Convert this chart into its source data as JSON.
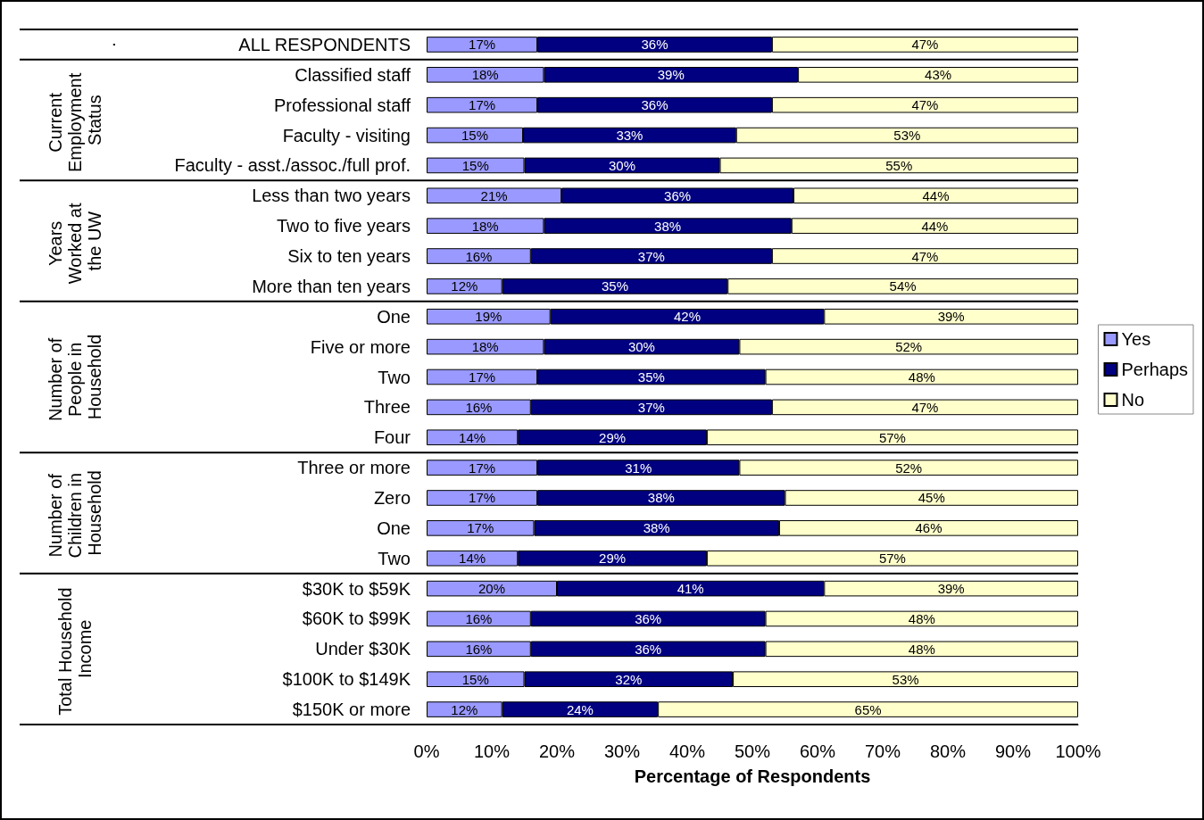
{
  "chart_data": {
    "type": "bar",
    "orientation": "horizontal",
    "stacked": true,
    "xlabel": "Percentage of Respondents",
    "categories": [
      "ALL RESPONDENTS",
      "Classified staff",
      "Professional staff",
      "Faculty - visiting",
      "Faculty - asst./assoc./full prof.",
      "Less than two years",
      "Two to five years",
      "Six to ten years",
      "More than ten years",
      "One",
      "Five or more",
      "Two",
      "Three",
      "Four",
      "Three or more",
      "Zero",
      "One",
      "Two",
      "$30K to $59K",
      "$60K to $99K",
      "Under $30K",
      "$100K to $149K",
      "$150K or more"
    ],
    "series": [
      {
        "name": "Yes",
        "color": "#9999ff",
        "values": [
          17,
          18,
          17,
          14.8,
          15,
          20.7,
          18,
          16,
          11.6,
          19,
          18,
          17,
          16,
          14,
          17,
          17,
          16.5,
          14,
          20,
          16,
          16,
          15,
          11.6
        ],
        "value_labels": [
          "17%",
          "18%",
          "17%",
          "15%",
          "15%",
          "21%",
          "18%",
          "16%",
          "12%",
          "19%",
          "18%",
          "17%",
          "16%",
          "14%",
          "17%",
          "17%",
          "17%",
          "14%",
          "20%",
          "16%",
          "16%",
          "15%",
          "12%"
        ]
      },
      {
        "name": "Perhaps",
        "color": "#000080",
        "values": [
          36,
          39,
          36,
          32.7,
          30,
          35.6,
          38,
          37,
          34.6,
          42,
          30,
          35,
          37,
          29,
          31,
          38,
          37.6,
          29,
          41,
          36,
          36,
          32,
          23.9
        ],
        "value_labels": [
          "36%",
          "39%",
          "36%",
          "33%",
          "30%",
          "36%",
          "38%",
          "37%",
          "35%",
          "42%",
          "30%",
          "35%",
          "37%",
          "29%",
          "31%",
          "38%",
          "38%",
          "29%",
          "41%",
          "36%",
          "36%",
          "32%",
          "24%"
        ]
      },
      {
        "name": "No",
        "color": "#ffffcc",
        "values": [
          47,
          43,
          47,
          52.5,
          55,
          43.7,
          44,
          47,
          53.8,
          39,
          52,
          48,
          47,
          57,
          52,
          45,
          45.9,
          57,
          39,
          48,
          48,
          53,
          64.5
        ],
        "value_labels": [
          "47%",
          "43%",
          "47%",
          "53%",
          "55%",
          "44%",
          "44%",
          "47%",
          "54%",
          "39%",
          "52%",
          "48%",
          "47%",
          "57%",
          "52%",
          "45%",
          "46%",
          "57%",
          "39%",
          "48%",
          "48%",
          "53%",
          "65%"
        ]
      }
    ],
    "xlim": [
      0,
      100
    ],
    "xticks": [
      {
        "value": 0,
        "label": "0%"
      },
      {
        "value": 10,
        "label": "10%"
      },
      {
        "value": 20,
        "label": "20%"
      },
      {
        "value": 30,
        "label": "30%"
      },
      {
        "value": 40,
        "label": "40%"
      },
      {
        "value": 50,
        "label": "50%"
      },
      {
        "value": 60,
        "label": "60%"
      },
      {
        "value": 70,
        "label": "70%"
      },
      {
        "value": 80,
        "label": "80%"
      },
      {
        "value": 90,
        "label": "90%"
      },
      {
        "value": 100,
        "label": "100%"
      }
    ],
    "annotations": [
      ".",
      "Current Employment Status",
      "Years Worked at the UW",
      "Number of People in Household",
      "Number of Children in Household",
      "Total Household Income"
    ],
    "grid": false,
    "legend": "right"
  }
}
